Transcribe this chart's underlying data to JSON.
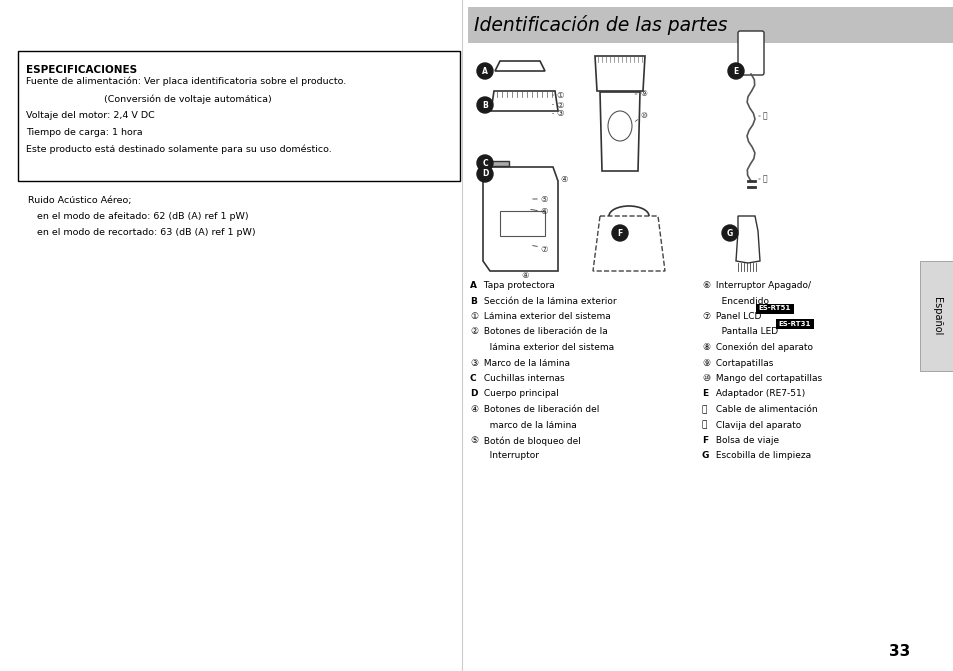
{
  "bg_color": "#ffffff",
  "left_panel_bg": "#ffffff",
  "right_panel_bg": "#ffffff",
  "header_bg": "#c0c0c0",
  "header_text": "Identificación de las partes",
  "header_text_color": "#000000",
  "spec_box_title": "ESPECIFICACIONES",
  "spec_lines": [
    "Fuente de alimentación: Ver placa identificatoria sobre el producto.",
    "                          (Conversión de voltaje automática)",
    "Voltaje del motor: 2,4 V DC",
    "Tiempo de carga: 1 hora",
    "Este producto está destinado solamente para su uso doméstico."
  ],
  "noise_lines": [
    "Ruido Acústico Aéreo;",
    "   en el modo de afeitado: 62 (dB (A) ref 1 pW)",
    "   en el modo de recortado: 63 (dB (A) ref 1 pW)"
  ],
  "legend_left": [
    {
      "sym": "A",
      "bold": true,
      "text": " Tapa protectora"
    },
    {
      "sym": "B",
      "bold": true,
      "text": " Sección de la lámina exterior"
    },
    {
      "sym": "①",
      "bold": false,
      "text": " Lámina exterior del sistema"
    },
    {
      "sym": "②",
      "bold": false,
      "text": " Botones de liberación de la"
    },
    {
      "sym": "",
      "bold": false,
      "text": "   lámina exterior del sistema"
    },
    {
      "sym": "③",
      "bold": false,
      "text": " Marco de la lámina"
    },
    {
      "sym": "C",
      "bold": true,
      "text": " Cuchillas internas"
    },
    {
      "sym": "D",
      "bold": true,
      "text": " Cuerpo principal"
    },
    {
      "sym": "④",
      "bold": false,
      "text": " Botones de liberación del"
    },
    {
      "sym": "",
      "bold": false,
      "text": "   marco de la lámina"
    },
    {
      "sym": "⑤",
      "bold": false,
      "text": " Botón de bloqueo del"
    },
    {
      "sym": "",
      "bold": false,
      "text": "   Interruptor"
    }
  ],
  "legend_right": [
    {
      "sym": "⑥",
      "bold": false,
      "text": " Interruptor Apagado/"
    },
    {
      "sym": "",
      "bold": false,
      "text": "   Encendido"
    },
    {
      "sym": "⑦",
      "bold": false,
      "text": " Panel LCD ",
      "tag": "ES-RT51",
      "tag2": null
    },
    {
      "sym": "",
      "bold": false,
      "text": "   Pantalla LED ",
      "tag": "ES-RT31",
      "tag2": null
    },
    {
      "sym": "⑧",
      "bold": false,
      "text": " Conexión del aparato"
    },
    {
      "sym": "⑨",
      "bold": false,
      "text": " Cortapatillas"
    },
    {
      "sym": "⑩",
      "bold": false,
      "text": " Mango del cortapatillas"
    },
    {
      "sym": "E",
      "bold": true,
      "text": " Adaptador (RE7-51)"
    },
    {
      "sym": "⑪",
      "bold": false,
      "text": " Cable de alimentación"
    },
    {
      "sym": "⑫",
      "bold": false,
      "text": " Clavija del aparato"
    },
    {
      "sym": "F",
      "bold": true,
      "text": " Bolsa de viaje"
    },
    {
      "sym": "G",
      "bold": true,
      "text": " Escobilla de limpieza"
    }
  ],
  "page_number": "33",
  "espanol_label": "Español",
  "tag_bg": "#000000",
  "tag_text_color": "#ffffff"
}
